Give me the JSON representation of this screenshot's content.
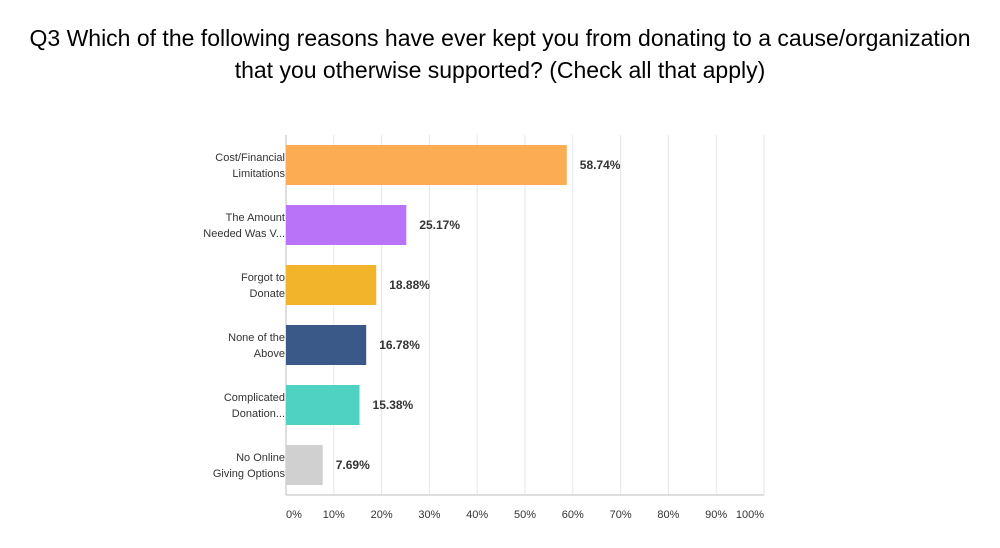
{
  "chart_data": {
    "type": "bar",
    "orientation": "horizontal",
    "title_lines": [
      "Q3 Which of the following reasons have ever kept you from donating to a cause/organization",
      "that you otherwise supported? (Check all that apply)"
    ],
    "categories": [
      [
        "Cost/Financial",
        "Limitations"
      ],
      [
        "The Amount",
        "Needed Was V..."
      ],
      [
        "Forgot to",
        "Donate"
      ],
      [
        "None of the",
        "Above"
      ],
      [
        "Complicated",
        "Donation..."
      ],
      [
        "No Online",
        "Giving Options"
      ]
    ],
    "values": [
      58.74,
      25.17,
      18.88,
      16.78,
      15.38,
      7.69
    ],
    "value_labels": [
      "58.74%",
      "25.17%",
      "18.88%",
      "16.78%",
      "15.38%",
      "7.69%"
    ],
    "colors": [
      "#fcac53",
      "#b873f9",
      "#f2b42b",
      "#3b5988",
      "#4fd2c1",
      "#d0d0d0"
    ],
    "xlim": [
      0,
      100
    ],
    "xticks": [
      "0%",
      "10%",
      "20%",
      "30%",
      "40%",
      "50%",
      "60%",
      "70%",
      "80%",
      "90%",
      "100%"
    ],
    "grid": true,
    "xlabel": "",
    "ylabel": ""
  }
}
